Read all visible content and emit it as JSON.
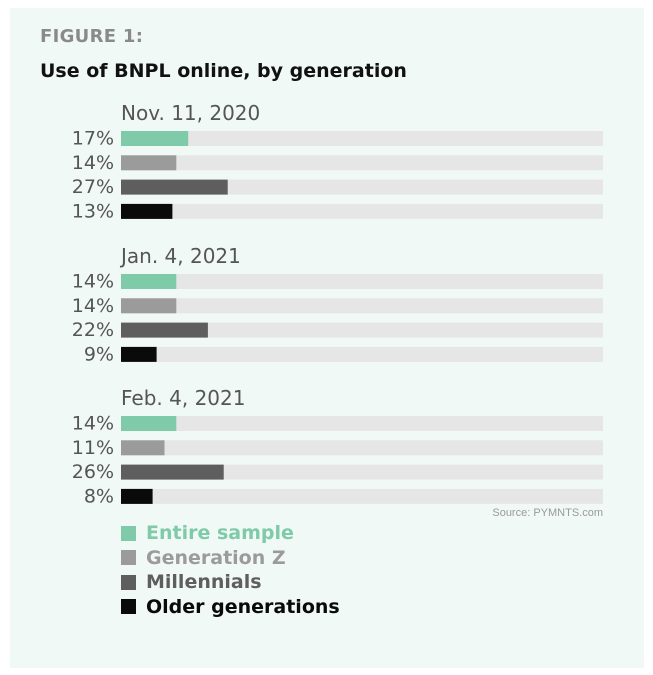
{
  "figure_label": "FIGURE 1:",
  "title": "Use of BNPL online, by generation",
  "source": "Source: PYMNTS.com",
  "colors": {
    "entire_sample": "#7fcaa8",
    "generation_z": "#9b9b9b",
    "millennials": "#5e5e5e",
    "older_generations": "#0a0a0a",
    "track": "#e6e6e6"
  },
  "chart_data": {
    "type": "bar",
    "orientation": "horizontal",
    "xlim": [
      0,
      100
    ],
    "series_names": [
      "Entire sample",
      "Generation Z",
      "Millennials",
      "Older generations"
    ],
    "groups": [
      {
        "label": "Nov. 11, 2020",
        "values": [
          17,
          14,
          27,
          13
        ],
        "labels": [
          "17%",
          "14%",
          "27%",
          "13%"
        ]
      },
      {
        "label": "Jan. 4, 2021",
        "values": [
          14,
          14,
          22,
          9
        ],
        "labels": [
          "14%",
          "14%",
          "22%",
          "9%"
        ]
      },
      {
        "label": "Feb. 4, 2021",
        "values": [
          14,
          11,
          26,
          8
        ],
        "labels": [
          "14%",
          "11%",
          "26%",
          "8%"
        ]
      }
    ]
  },
  "legend": [
    {
      "label": "Entire sample",
      "color": "#7fcaa8"
    },
    {
      "label": "Generation Z",
      "color": "#9b9b9b"
    },
    {
      "label": "Millennials",
      "color": "#5e5e5e"
    },
    {
      "label": "Older generations",
      "color": "#0a0a0a"
    }
  ]
}
